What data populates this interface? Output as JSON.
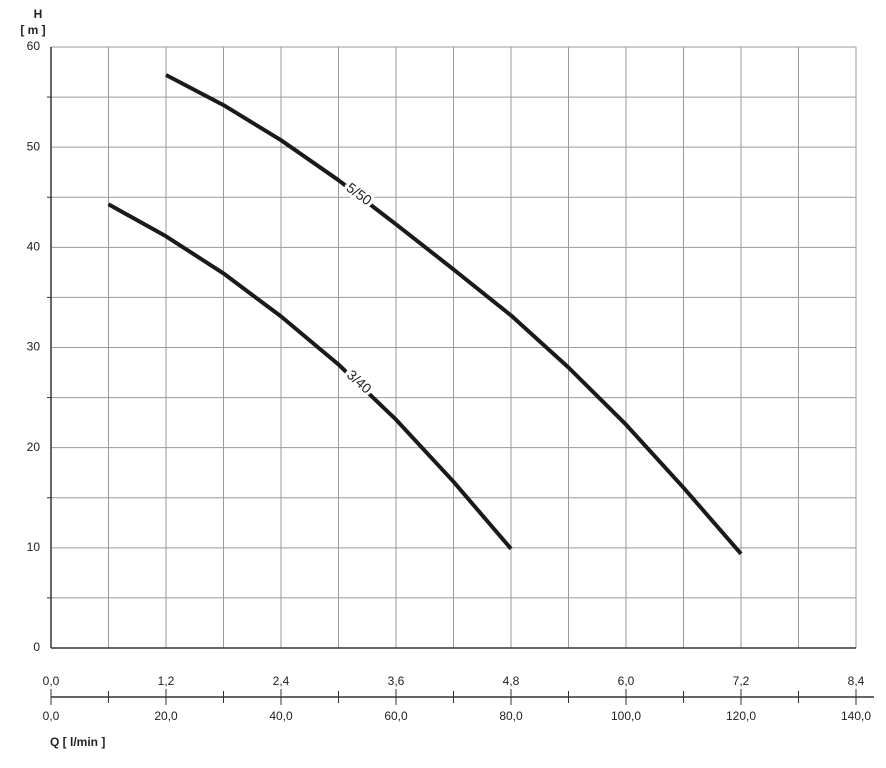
{
  "chart_data": {
    "type": "line",
    "y_label_top": "H",
    "y_label_unit": "[ m ]",
    "x_label": "Q [ l/min ]",
    "xlim": [
      0,
      140
    ],
    "xticks": [
      {
        "value": 0,
        "label": "0,0"
      },
      {
        "value": 20,
        "label": "20,0"
      },
      {
        "value": 40,
        "label": "40,0"
      },
      {
        "value": 60,
        "label": "60,0"
      },
      {
        "value": 80,
        "label": "80,0"
      },
      {
        "value": 100,
        "label": "100,0"
      },
      {
        "value": 120,
        "label": "120,0"
      },
      {
        "value": 140,
        "label": "140,0"
      }
    ],
    "x_minor_ticks": [
      10,
      30,
      50,
      70,
      90,
      110,
      130
    ],
    "x2lim": [
      0,
      8.4
    ],
    "x2ticks": [
      {
        "value": 0,
        "label": "0,0"
      },
      {
        "value": 1.2,
        "label": "1,2"
      },
      {
        "value": 2.4,
        "label": "2,4"
      },
      {
        "value": 3.6,
        "label": "3,6"
      },
      {
        "value": 4.8,
        "label": "4,8"
      },
      {
        "value": 6,
        "label": "6,0"
      },
      {
        "value": 7.2,
        "label": "7,2"
      },
      {
        "value": 8.4,
        "label": "8,4"
      }
    ],
    "ylim": [
      0,
      60
    ],
    "yticks": [
      0,
      10,
      20,
      30,
      40,
      50,
      60
    ],
    "y_minor_ticks": [
      5,
      15,
      25,
      35,
      45,
      55
    ],
    "grid": true,
    "series": [
      {
        "name": "5/50",
        "color": "#1a1a1a",
        "x": [
          20,
          30,
          40,
          50,
          60,
          70,
          80,
          90,
          100,
          110,
          120
        ],
        "values": [
          57.2,
          54.2,
          50.7,
          46.7,
          42.3,
          37.8,
          33.2,
          28.0,
          22.3,
          16.0,
          9.4
        ]
      },
      {
        "name": "3/40",
        "color": "#1a1a1a",
        "x": [
          10,
          20,
          30,
          40,
          50,
          60,
          70,
          80
        ],
        "values": [
          44.3,
          41.1,
          37.4,
          33.1,
          28.3,
          22.8,
          16.6,
          9.9
        ]
      }
    ]
  }
}
